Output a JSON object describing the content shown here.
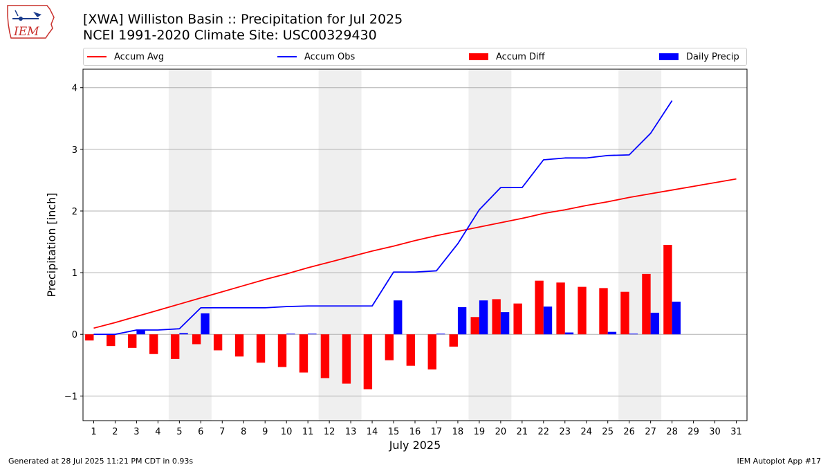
{
  "header": {
    "title_line1": "[XWA] Williston Basin :: Precipitation for Jul 2025",
    "title_line2": "NCEI 1991-2020 Climate Site: USC00329430"
  },
  "logo": {
    "text": "IEM",
    "icon": "iem-iowa-logo"
  },
  "footer": {
    "left": "Generated at 28 Jul 2025 11:21 PM CDT in 0.93s",
    "right": "IEM Autoplot App #17"
  },
  "colors": {
    "avg": "#ff0000",
    "obs": "#0000ff",
    "diff": "#ff0000",
    "daily": "#0000ff",
    "weekend": "#efefef"
  },
  "chart_data": {
    "type": "bar",
    "xlabel": "July 2025",
    "ylabel": "Precipitation [inch]",
    "ylim": [
      -1.4,
      4.3
    ],
    "yticks": [
      -1,
      0,
      1,
      2,
      3,
      4
    ],
    "ytick_labels": [
      "−1",
      "0",
      "1",
      "2",
      "3",
      "4"
    ],
    "grid": "horizontal",
    "legend_position": "top",
    "legend": [
      "Accum Avg",
      "Accum Obs",
      "Accum Diff",
      "Daily Precip"
    ],
    "days": [
      1,
      2,
      3,
      4,
      5,
      6,
      7,
      8,
      9,
      10,
      11,
      12,
      13,
      14,
      15,
      16,
      17,
      18,
      19,
      20,
      21,
      22,
      23,
      24,
      25,
      26,
      27,
      28,
      29,
      30,
      31
    ],
    "weekend_spans": [
      [
        5,
        6
      ],
      [
        12,
        13
      ],
      [
        19,
        20
      ],
      [
        26,
        27
      ]
    ],
    "series": [
      {
        "name": "Accum Avg",
        "kind": "line",
        "values": [
          0.1,
          0.19,
          0.29,
          0.39,
          0.49,
          0.59,
          0.69,
          0.79,
          0.89,
          0.98,
          1.08,
          1.17,
          1.26,
          1.35,
          1.43,
          1.52,
          1.6,
          1.67,
          1.74,
          1.81,
          1.88,
          1.96,
          2.02,
          2.09,
          2.15,
          2.22,
          2.28,
          2.34,
          2.4,
          2.46,
          2.52
        ]
      },
      {
        "name": "Accum Obs",
        "kind": "line",
        "values": [
          0.0,
          0.0,
          0.07,
          0.07,
          0.09,
          0.43,
          0.43,
          0.43,
          0.43,
          0.45,
          0.46,
          0.46,
          0.46,
          0.46,
          1.01,
          1.01,
          1.03,
          1.47,
          2.02,
          2.38,
          2.38,
          2.83,
          2.86,
          2.86,
          2.9,
          2.91,
          3.26,
          3.79
        ]
      },
      {
        "name": "Accum Diff",
        "kind": "bar",
        "values": [
          -0.1,
          -0.19,
          -0.22,
          -0.32,
          -0.4,
          -0.16,
          -0.26,
          -0.36,
          -0.46,
          -0.53,
          -0.62,
          -0.71,
          -0.8,
          -0.89,
          -0.42,
          -0.51,
          -0.57,
          -0.2,
          0.28,
          0.57,
          0.5,
          0.87,
          0.84,
          0.77,
          0.75,
          0.69,
          0.98,
          1.45
        ]
      },
      {
        "name": "Daily Precip",
        "kind": "bar",
        "values": [
          0.0,
          0.0,
          0.07,
          0.0,
          0.02,
          0.34,
          0.0,
          0.0,
          0.0,
          0.01,
          0.01,
          0.0,
          0.0,
          0.0,
          0.55,
          0.0,
          0.01,
          0.44,
          0.55,
          0.36,
          0.0,
          0.45,
          0.03,
          0.0,
          0.04,
          0.01,
          0.35,
          0.53
        ]
      }
    ]
  }
}
